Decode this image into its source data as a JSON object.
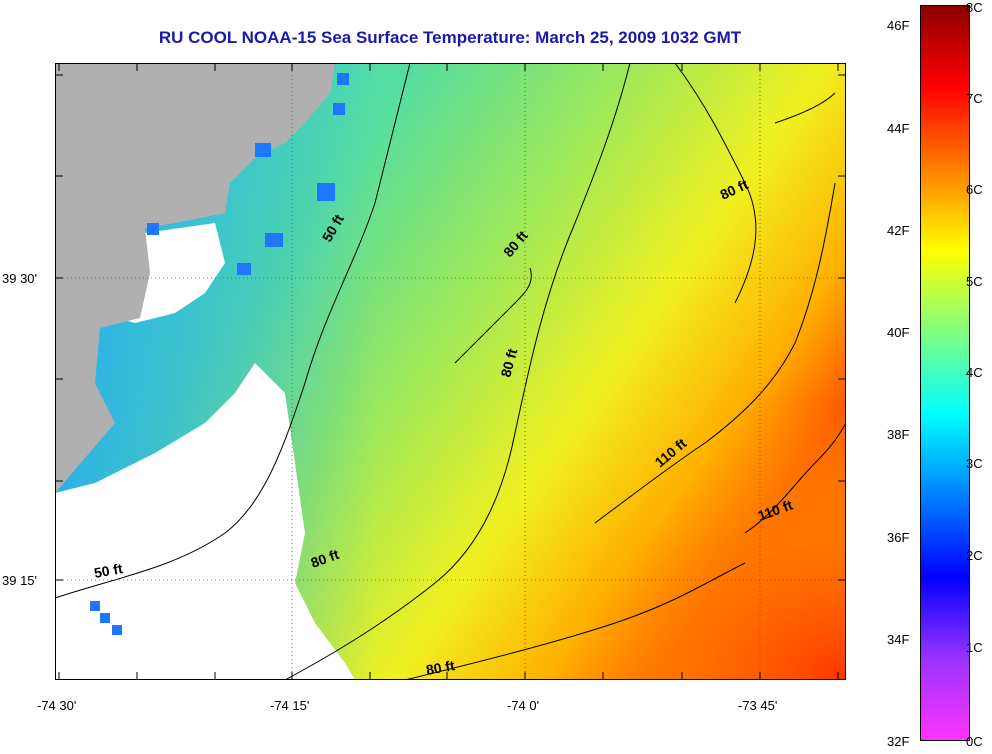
{
  "title": "RU COOL  NOAA-15  Sea Surface Temperature:  March 25, 2009 1032 GMT",
  "axes": {
    "lon_ticks": [
      "-74 30'",
      "-74 15'",
      "-74 0'",
      "-73 45'"
    ],
    "lat_ticks": [
      "39 30'",
      "39 15'"
    ]
  },
  "contours": [
    {
      "label": "50 ft"
    },
    {
      "label": "50 ft"
    },
    {
      "label": "80 ft"
    },
    {
      "label": "80 ft"
    },
    {
      "label": "80 ft"
    },
    {
      "label": "80 ft"
    },
    {
      "label": "80 ft"
    },
    {
      "label": "110 ft"
    },
    {
      "label": "110 ft"
    }
  ],
  "colorbar": {
    "fahrenheit_labels": [
      "46F",
      "44F",
      "42F",
      "40F",
      "38F",
      "36F",
      "34F",
      "32F"
    ],
    "celsius_labels": [
      "8C",
      "7C",
      "6C",
      "5C",
      "4C",
      "3C",
      "2C",
      "1C",
      "0C"
    ],
    "gradient_colors": [
      "#8b0000",
      "#ff0000",
      "#ff7f00",
      "#ffff00",
      "#80ff80",
      "#00ffff",
      "#0080ff",
      "#0000ff",
      "#9933ff",
      "#ff33ff"
    ]
  },
  "colors": {
    "land": "#b0b0b0",
    "title": "#1a1aa8"
  }
}
